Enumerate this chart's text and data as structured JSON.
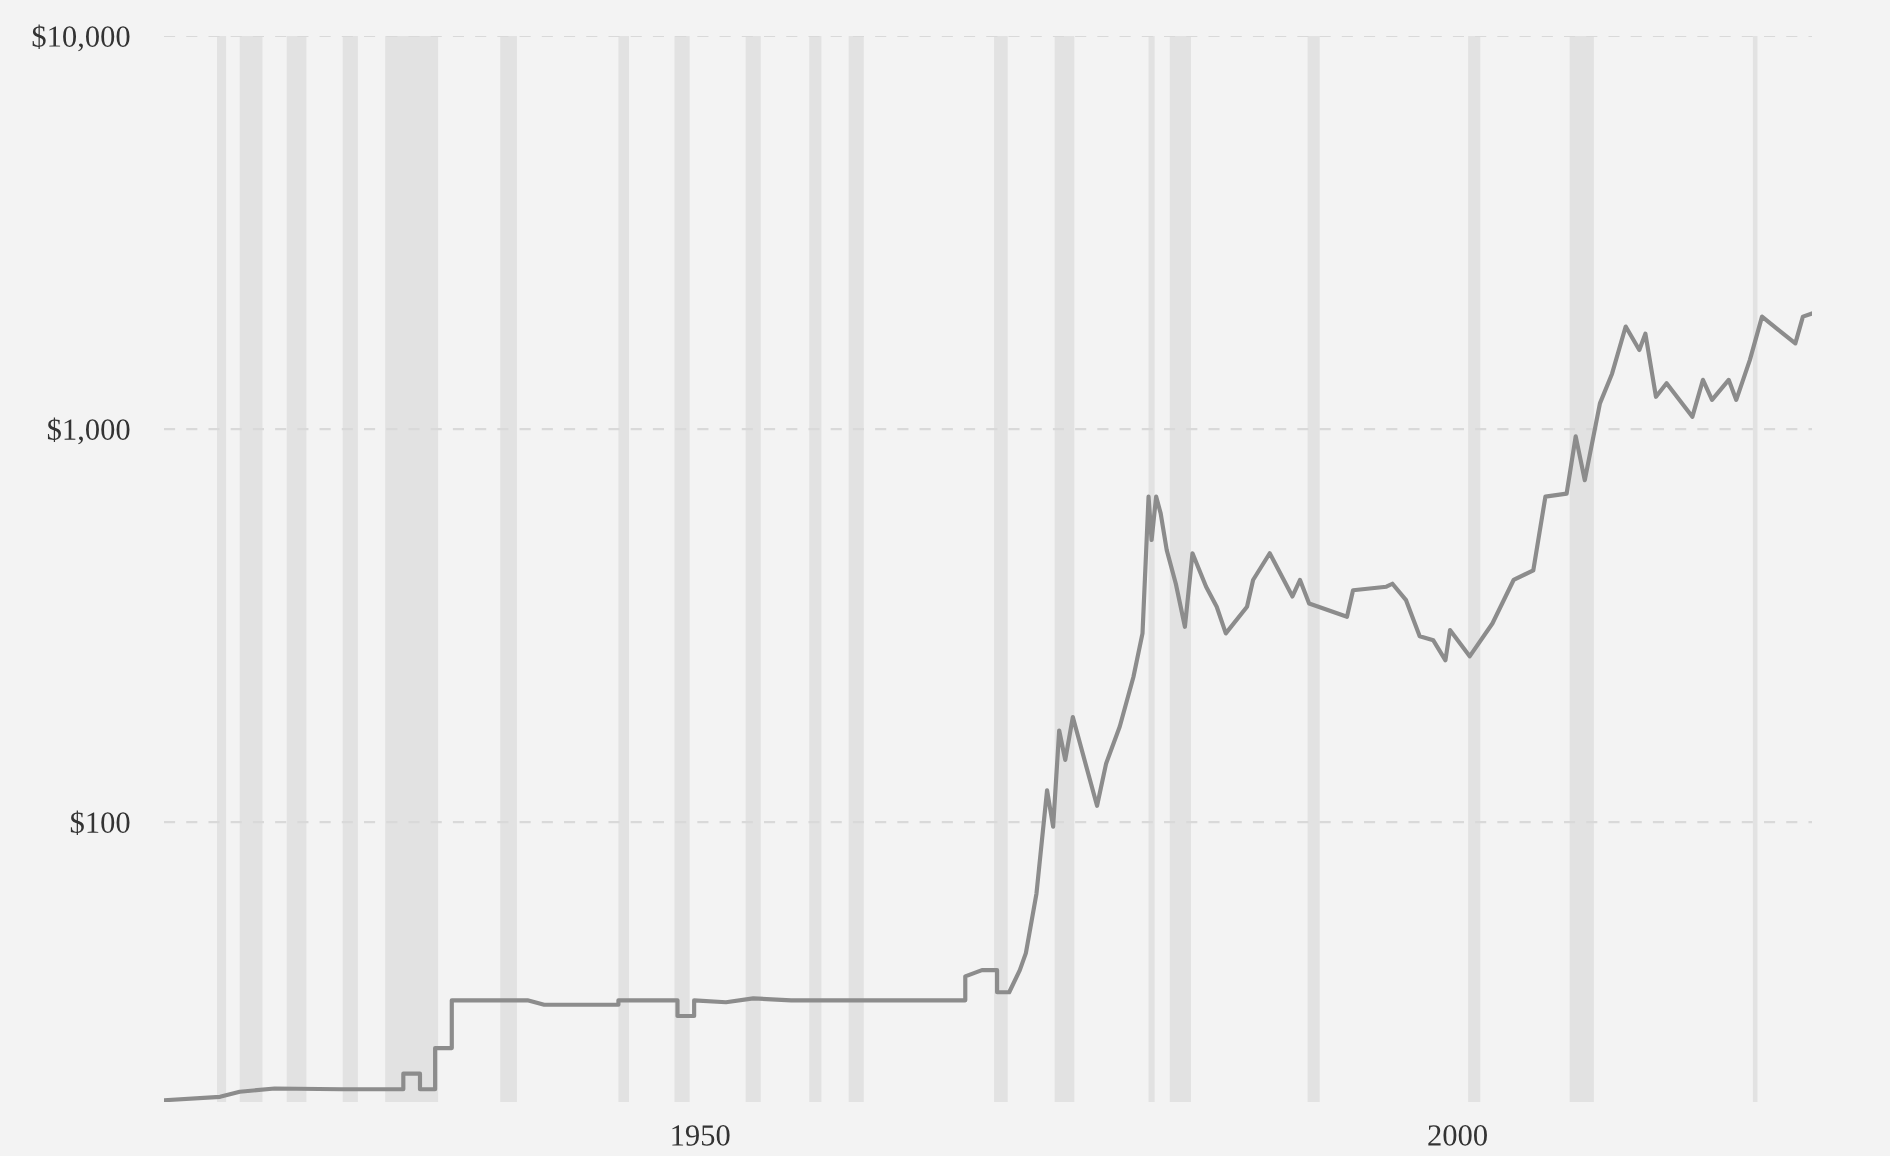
{
  "chart_data": {
    "type": "line",
    "log": "y",
    "grid": "y",
    "marker": "none",
    "line_style": "solid",
    "xlim": [
      1914.6,
      2023.4
    ],
    "xticks": [
      1950,
      2000
    ],
    "ylim": [
      19.4,
      10000
    ],
    "yticks": [
      {
        "value": 100,
        "label": "$100"
      },
      {
        "value": 1000,
        "label": "$1,000"
      },
      {
        "value": 10000,
        "label": "$10,000"
      }
    ],
    "series": [
      {
        "color": "#8c8c8c",
        "x": [
          1914.6,
          1918.3,
          1919.6,
          1921.9,
          1926.3,
          1930.4,
          1930.4,
          1931.5,
          1931.5,
          1932.5,
          1932.5,
          1933.6,
          1933.6,
          1938.6,
          1939.7,
          1944.6,
          1944.6,
          1948.5,
          1948.5,
          1949.6,
          1949.6,
          1951.7,
          1953.5,
          1956.0,
          1967.5,
          1967.5,
          1968.6,
          1969.6,
          1969.6,
          1970.4,
          1971.1,
          1971.5,
          1972.2,
          1972.9,
          1973.3,
          1973.7,
          1974.1,
          1974.6,
          1975.5,
          1976.2,
          1976.8,
          1977.7,
          1978.6,
          1979.2,
          1979.6,
          1979.8,
          1980.1,
          1980.4,
          1980.8,
          1981.4,
          1982.0,
          1982.5,
          1983.4,
          1984.1,
          1984.7,
          1986.1,
          1986.5,
          1987.6,
          1989.1,
          1989.6,
          1990.2,
          1992.7,
          1993.1,
          1995.3,
          1995.7,
          1996.6,
          1997.5,
          1998.4,
          1999.2,
          1999.5,
          2000.8,
          2002.3,
          2003.7,
          2005.0,
          2005.8,
          2007.2,
          2007.8,
          2008.4,
          2009.4,
          2010.2,
          2011.1,
          2012.0,
          2012.4,
          2013.1,
          2013.8,
          2015.5,
          2016.2,
          2016.8,
          2017.9,
          2018.4,
          2019.3,
          2020.1,
          2021.2,
          2022.3,
          2022.8,
          2023.4
        ],
        "values": [
          19.6,
          20.0,
          20.6,
          21.0,
          20.9,
          20.9,
          22.9,
          22.9,
          20.9,
          20.9,
          26.6,
          26.6,
          35.2,
          35.2,
          34.3,
          34.3,
          35.2,
          35.2,
          32.1,
          32.1,
          35.2,
          34.8,
          35.6,
          35.2,
          35.2,
          40.5,
          42.0,
          42.0,
          36.9,
          36.9,
          42.0,
          46.4,
          65.8,
          120.5,
          97.3,
          171,
          144,
          185,
          138,
          110,
          141,
          175,
          234,
          302,
          673,
          522,
          673,
          610,
          492,
          404,
          314,
          483,
          397,
          353,
          302,
          353,
          413,
          483,
          375,
          413,
          360,
          333,
          389,
          397,
          404,
          367,
          297,
          290,
          258,
          308,
          264,
          320,
          413,
          437,
          673,
          685,
          958,
          741,
          1162,
          1383,
          1823,
          1589,
          1749,
          1208,
          1308,
          1074,
          1334,
          1186,
          1334,
          1186,
          1500,
          1932,
          1786,
          1652,
          1932,
          1968
        ]
      }
    ],
    "bands": [
      {
        "axis": "x",
        "from": 1918.1,
        "to": 1918.7,
        "color": "#e2e2e2"
      },
      {
        "axis": "x",
        "from": 1919.6,
        "to": 1921.1,
        "color": "#e2e2e2"
      },
      {
        "axis": "x",
        "from": 1922.7,
        "to": 1924.0,
        "color": "#e2e2e2"
      },
      {
        "axis": "x",
        "from": 1926.4,
        "to": 1927.4,
        "color": "#e2e2e2"
      },
      {
        "axis": "x",
        "from": 1929.2,
        "to": 1932.7,
        "color": "#e2e2e2"
      },
      {
        "axis": "x",
        "from": 1936.8,
        "to": 1937.9,
        "color": "#e2e2e2"
      },
      {
        "axis": "x",
        "from": 1944.6,
        "to": 1945.3,
        "color": "#e2e2e2"
      },
      {
        "axis": "x",
        "from": 1948.3,
        "to": 1949.3,
        "color": "#e2e2e2"
      },
      {
        "axis": "x",
        "from": 1953.0,
        "to": 1954.0,
        "color": "#e2e2e2"
      },
      {
        "axis": "x",
        "from": 1957.2,
        "to": 1958.0,
        "color": "#e2e2e2"
      },
      {
        "axis": "x",
        "from": 1959.8,
        "to": 1960.8,
        "color": "#e2e2e2"
      },
      {
        "axis": "x",
        "from": 1969.4,
        "to": 1970.3,
        "color": "#e2e2e2"
      },
      {
        "axis": "x",
        "from": 1973.4,
        "to": 1974.7,
        "color": "#e2e2e2"
      },
      {
        "axis": "x",
        "from": 1979.6,
        "to": 1980.0,
        "color": "#e2e2e2"
      },
      {
        "axis": "x",
        "from": 1981.0,
        "to": 1982.4,
        "color": "#e2e2e2"
      },
      {
        "axis": "x",
        "from": 1990.1,
        "to": 1990.9,
        "color": "#e2e2e2"
      },
      {
        "axis": "x",
        "from": 2000.7,
        "to": 2001.5,
        "color": "#e2e2e2"
      },
      {
        "axis": "x",
        "from": 2007.4,
        "to": 2009.0,
        "color": "#e2e2e2"
      },
      {
        "axis": "x",
        "from": 2019.5,
        "to": 2019.8,
        "color": "#e2e2e2"
      }
    ]
  }
}
